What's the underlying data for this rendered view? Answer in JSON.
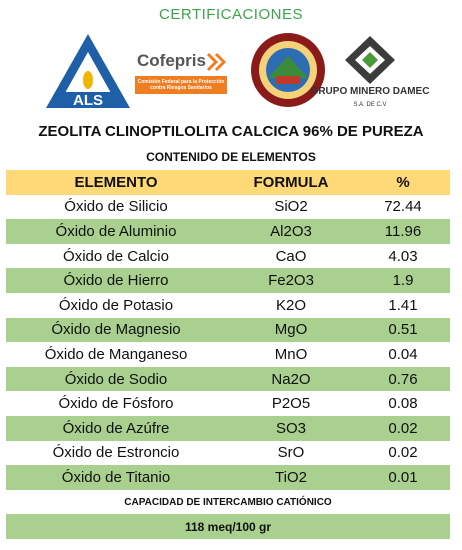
{
  "header": {
    "certifications": "CERTIFICACIONES",
    "logos": {
      "als": "ALS",
      "cofepris": "Cofepris",
      "cofepris_caption": "Comisión Federal para la Protección contra Riesgos Sanitarios",
      "damec": "GRUPO MINERO DAMEC",
      "damec_caption": "S.A. DE C.V"
    },
    "title": "ZEOLITA CLINOPTILOLITA CALCICA 96% DE PUREZA",
    "subtitle": "CONTENIDO DE ELEMENTOS"
  },
  "table": {
    "columns": [
      "ELEMENTO",
      "FORMULA",
      "%"
    ],
    "rows": [
      [
        "Óxido de Silicio",
        "SiO2",
        "72.44"
      ],
      [
        "Óxido de Aluminio",
        "Al2O3",
        "11.96"
      ],
      [
        "Óxido de Calcio",
        "CaO",
        "4.03"
      ],
      [
        "Óxido de Hierro",
        "Fe2O3",
        "1.9"
      ],
      [
        "Óxido de Potasio",
        "K2O",
        "1.41"
      ],
      [
        "Óxido de Magnesio",
        "MgO",
        "0.51"
      ],
      [
        "Óxido de Manganeso",
        "MnO",
        "0.04"
      ],
      [
        "Óxido de Sodio",
        "Na2O",
        "0.76"
      ],
      [
        "Óxido de Fósforo",
        "P2O5",
        "0.08"
      ],
      [
        "Óxido de Azúfre",
        "SO3",
        "0.02"
      ],
      [
        "Óxido de Estroncio",
        "SrO",
        "0.02"
      ],
      [
        "Óxido de Titanio",
        "TiO2",
        "0.01"
      ]
    ]
  },
  "footer": {
    "label": "CAPACIDAD DE INTERCAMBIO CATIÓNICO",
    "value": "118 meq/100 gr"
  }
}
